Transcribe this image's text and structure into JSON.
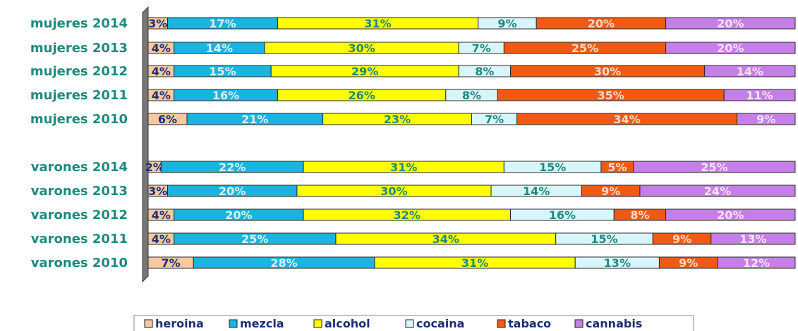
{
  "chart_data": {
    "type": "bar",
    "orientation": "horizontal",
    "stacked": "percent",
    "categories": [
      "mujeres 2014",
      "mujeres 2013",
      "mujeres 2012",
      "mujeres 2011",
      "mujeres 2010",
      "varones 2014",
      "varones 2013",
      "varones 2012",
      "varones 2011",
      "varones 2010"
    ],
    "series": [
      {
        "name": "heroina",
        "color": "#f8c8a0",
        "labelColor": "#1a2f7a",
        "values": [
          3,
          4,
          4,
          4,
          6,
          2,
          3,
          4,
          4,
          7
        ],
        "labels": [
          "3%",
          "4%",
          "4%",
          "4%",
          "6%",
          "2%",
          "3%",
          "4%",
          "4%",
          "7%"
        ]
      },
      {
        "name": "mezcla",
        "color": "#1ab4e0",
        "labelColor": "#d8f0fa",
        "values": [
          17,
          14,
          15,
          16,
          21,
          22,
          20,
          20,
          25,
          28
        ],
        "labels": [
          "17%",
          "14%",
          "15%",
          "16%",
          "21%",
          "22%",
          "20%",
          "20%",
          "25%",
          "28%"
        ]
      },
      {
        "name": "alcohol",
        "color": "#ffff00",
        "labelColor": "#1f8a7a",
        "values": [
          31,
          30,
          29,
          26,
          23,
          31,
          30,
          32,
          34,
          31
        ],
        "labels": [
          "31%",
          "30%",
          "29%",
          "26%",
          "23%",
          "31%",
          "30%",
          "32%",
          "34%",
          "31%"
        ]
      },
      {
        "name": "cocaina",
        "color": "#d8f6fa",
        "labelColor": "#1f8a7a",
        "values": [
          9,
          7,
          8,
          8,
          7,
          15,
          14,
          16,
          15,
          13
        ],
        "labels": [
          "9%",
          "7%",
          "8%",
          "8%",
          "7%",
          "15%",
          "14%",
          "16%",
          "15%",
          "13%"
        ]
      },
      {
        "name": "tabaco",
        "color": "#f05a14",
        "labelColor": "#ffd8c8",
        "values": [
          20,
          25,
          30,
          35,
          34,
          5,
          9,
          8,
          9,
          9
        ],
        "labels": [
          "20%",
          "25%",
          "30%",
          "35%",
          "34%",
          "5%",
          "9%",
          "8%",
          "9%",
          "9%"
        ]
      },
      {
        "name": "cannabis",
        "color": "#c67ee8",
        "labelColor": "#f4e4fc",
        "values": [
          20,
          20,
          14,
          11,
          9,
          25,
          24,
          20,
          13,
          12
        ],
        "labels": [
          "20%",
          "20%",
          "14%",
          "11%",
          "9%",
          "25%",
          "24%",
          "20%",
          "13%",
          "12%"
        ]
      }
    ],
    "xlim": [
      0,
      100
    ],
    "legend": "bottom",
    "grid": false,
    "wall_color": "#777777"
  }
}
